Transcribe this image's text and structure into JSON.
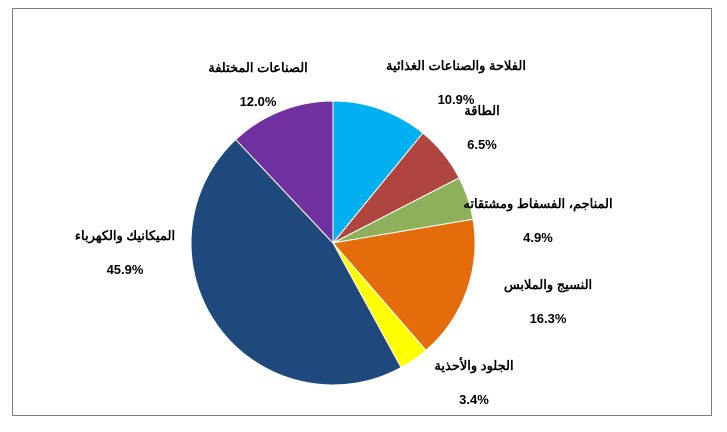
{
  "chart_data": {
    "type": "pie",
    "title": "",
    "start_angle_deg": 0,
    "direction": "clockwise",
    "slices": [
      {
        "label": "الفلاحة والصناعات الغذائية",
        "value": 10.9,
        "value_label": "10.9%",
        "color": "#00b0f0"
      },
      {
        "label": "الطاقة",
        "value": 6.5,
        "value_label": "6.5%",
        "color": "#b0443f"
      },
      {
        "label": "المناجم، الفسفاط ومشتقاته",
        "value": 4.9,
        "value_label": "4.9%",
        "color": "#8fb05a"
      },
      {
        "label": "النسيج والملابس",
        "value": 16.3,
        "value_label": "16.3%",
        "color": "#e46c0a"
      },
      {
        "label": "الجلود والأحذية",
        "value": 3.4,
        "value_label": "3.4%",
        "color": "#ffff00"
      },
      {
        "label": "الميكانيك والكهرباء",
        "value": 45.9,
        "value_label": "45.9%",
        "color": "#1f497d"
      },
      {
        "label": "الصناعات المختلفة",
        "value": 12.0,
        "value_label": "12.0%",
        "color": "#7030a0"
      }
    ]
  }
}
